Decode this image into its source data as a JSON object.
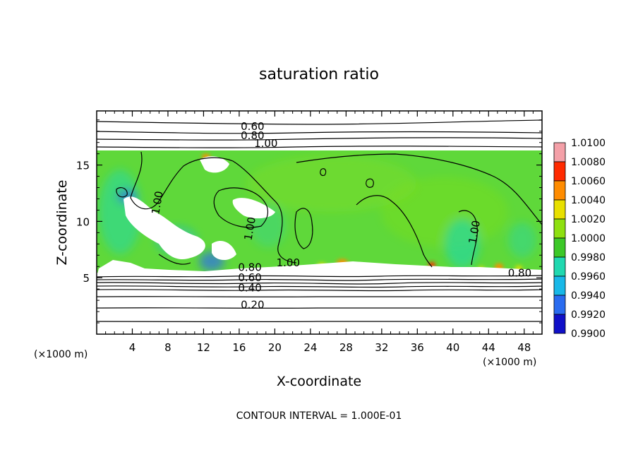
{
  "chart_data": {
    "type": "heatmap",
    "title": "saturation ratio",
    "xlabel": "X-coordinate",
    "ylabel": "Z-coordinate",
    "x_unit_left": "(×1000 m)",
    "x_unit_right": "(×1000 m)",
    "xlim": [
      0,
      50
    ],
    "ylim": [
      0,
      19.8
    ],
    "x_ticks": [
      4,
      8,
      12,
      16,
      20,
      24,
      28,
      32,
      36,
      40,
      44,
      48
    ],
    "y_ticks": [
      5,
      10,
      15
    ],
    "colorbar": {
      "levels": [
        "0.9900",
        "0.9920",
        "0.9940",
        "0.9960",
        "0.9980",
        "1.0000",
        "1.0020",
        "1.0040",
        "1.0060",
        "1.0080",
        "1.0100"
      ],
      "colors": [
        "#6a2ca0",
        "#1010c8",
        "#2a6cf0",
        "#18b8e8",
        "#20d8b0",
        "#3cc828",
        "#8ee010",
        "#e8e000",
        "#ff8c00",
        "#ff2a00",
        "#f4a0a8"
      ]
    },
    "field_colors": {
      "background_supersaturated": "#5fd83a",
      "below_range": "#ffffff"
    },
    "contour_labels": [
      {
        "text": "0.60",
        "x": 17.5,
        "z": 18.1
      },
      {
        "text": "0.80",
        "x": 17.5,
        "z": 17.3
      },
      {
        "text": "1.00",
        "x": 19.0,
        "z": 16.6
      },
      {
        "text": "1.00",
        "x": 7.2,
        "z": 11.6
      },
      {
        "text": "1.00",
        "x": 17.6,
        "z": 9.3
      },
      {
        "text": "1.00",
        "x": 21.5,
        "z": 6.0
      },
      {
        "text": "1.00",
        "x": 42.8,
        "z": 9.0
      },
      {
        "text": "0.80",
        "x": 17.2,
        "z": 5.6
      },
      {
        "text": "0.60",
        "x": 17.2,
        "z": 4.7
      },
      {
        "text": "0.40",
        "x": 17.2,
        "z": 3.8
      },
      {
        "text": "0.20",
        "x": 17.5,
        "z": 2.3
      },
      {
        "text": "0.80",
        "x": 47.5,
        "z": 5.1
      }
    ],
    "footer": "CONTOUR INTERVAL = 1.000E-01"
  }
}
